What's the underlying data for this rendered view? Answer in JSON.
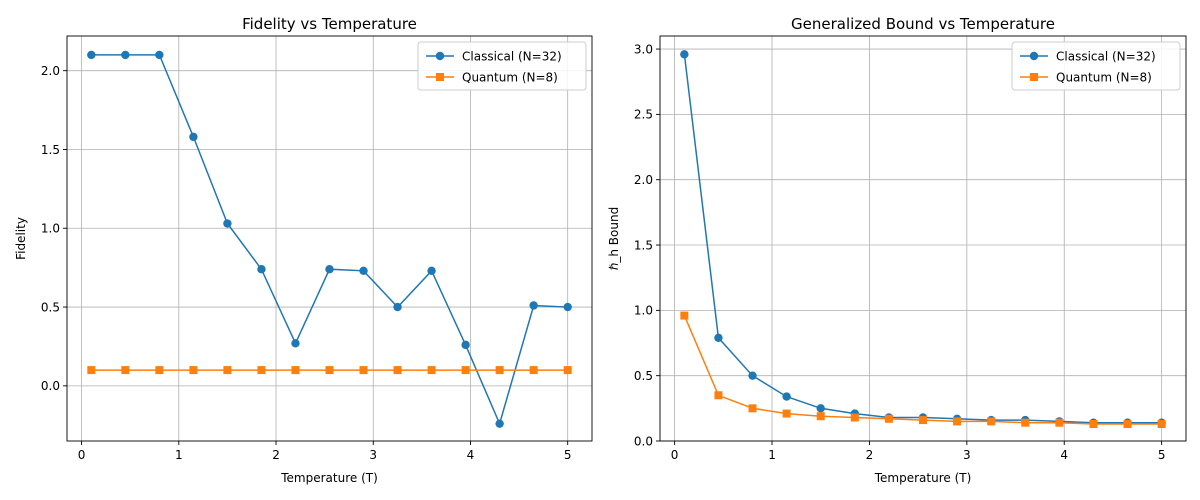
{
  "chart_data": [
    {
      "type": "line",
      "title": "Fidelity vs Temperature",
      "xlabel": "Temperature (T)",
      "ylabel": "Fidelity",
      "xlim": [
        -0.15,
        5.25
      ],
      "ylim": [
        -0.35,
        2.22
      ],
      "xticks": [
        0,
        1,
        2,
        3,
        4,
        5
      ],
      "yticks": [
        0.0,
        0.5,
        1.0,
        1.5,
        2.0
      ],
      "ytick_labels": [
        "0.0",
        "0.5",
        "1.0",
        "1.5",
        "2.0"
      ],
      "grid": true,
      "legend": "top-right",
      "x": [
        0.1,
        0.45,
        0.8,
        1.15,
        1.5,
        1.85,
        2.2,
        2.55,
        2.9,
        3.25,
        3.6,
        3.95,
        4.3,
        4.65,
        5.0
      ],
      "series": [
        {
          "name": "Classical (N=32)",
          "color": "#1f77b4",
          "marker": "circle",
          "values": [
            2.1,
            2.1,
            2.1,
            1.58,
            1.03,
            0.74,
            0.27,
            0.74,
            0.73,
            0.5,
            0.73,
            0.26,
            -0.24,
            0.51,
            0.5
          ]
        },
        {
          "name": "Quantum (N=8)",
          "color": "#ff7f0e",
          "marker": "square",
          "values": [
            0.1,
            0.1,
            0.1,
            0.1,
            0.1,
            0.1,
            0.1,
            0.1,
            0.1,
            0.1,
            0.1,
            0.1,
            0.1,
            0.1,
            0.1
          ]
        }
      ]
    },
    {
      "type": "line",
      "title": "Generalized Bound vs Temperature",
      "xlabel": "Temperature (T)",
      "ylabel": "ℏ_h Bound",
      "xlim": [
        -0.15,
        5.25
      ],
      "ylim": [
        0.0,
        3.1
      ],
      "xticks": [
        0,
        1,
        2,
        3,
        4,
        5
      ],
      "yticks": [
        0.0,
        0.5,
        1.0,
        1.5,
        2.0,
        2.5,
        3.0
      ],
      "ytick_labels": [
        "0.0",
        "0.5",
        "1.0",
        "1.5",
        "2.0",
        "2.5",
        "3.0"
      ],
      "grid": true,
      "legend": "top-right",
      "x": [
        0.1,
        0.45,
        0.8,
        1.15,
        1.5,
        1.85,
        2.2,
        2.55,
        2.9,
        3.25,
        3.6,
        3.95,
        4.3,
        4.65,
        5.0
      ],
      "series": [
        {
          "name": "Classical (N=32)",
          "color": "#1f77b4",
          "marker": "circle",
          "values": [
            2.96,
            0.79,
            0.5,
            0.34,
            0.25,
            0.21,
            0.18,
            0.18,
            0.17,
            0.16,
            0.16,
            0.15,
            0.14,
            0.14,
            0.14
          ]
        },
        {
          "name": "Quantum (N=8)",
          "color": "#ff7f0e",
          "marker": "square",
          "values": [
            0.96,
            0.35,
            0.25,
            0.21,
            0.19,
            0.18,
            0.17,
            0.16,
            0.15,
            0.15,
            0.14,
            0.14,
            0.13,
            0.13,
            0.13
          ]
        }
      ]
    }
  ]
}
